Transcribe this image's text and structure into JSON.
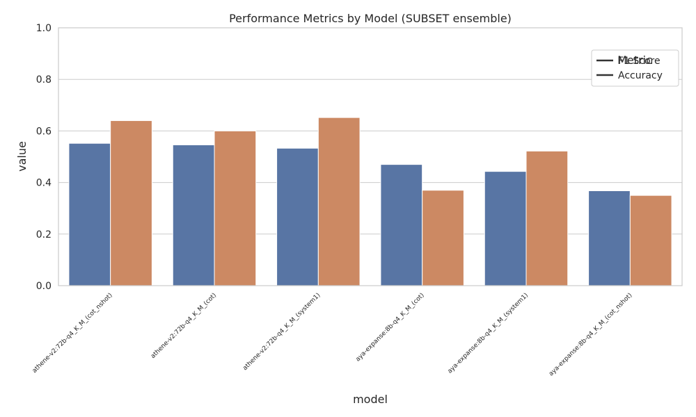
{
  "chart_data": {
    "type": "bar",
    "title": "Performance Metrics by Model (SUBSET ensemble)",
    "xlabel": "model",
    "ylabel": "value",
    "ylim": [
      0,
      1
    ],
    "yticks": [
      "0.0",
      "0.2",
      "0.4",
      "0.6",
      "0.8",
      "1.0"
    ],
    "categories": [
      "athene-v2:72b-q4_K_M_(cot_nshot)",
      "athene-v2:72b-q4_K_M_(cot)",
      "athene-v2:72b-q4_K_M_(system1)",
      "aya-expanse:8b-q4_K_M_(cot)",
      "aya-expanse:8b-q4_K_M_(system1)",
      "aya-expanse:8b-q4_K_M_(cot_nshot)"
    ],
    "series": [
      {
        "name": "F1 Score",
        "color": "#5875a4",
        "values": [
          0.552,
          0.546,
          0.533,
          0.47,
          0.443,
          0.368
        ]
      },
      {
        "name": "Accuracy",
        "color": "#cc8963",
        "values": [
          0.64,
          0.6,
          0.652,
          0.37,
          0.522,
          0.35
        ]
      }
    ],
    "legend": {
      "title": "Metric",
      "position": "top-right"
    },
    "grid": true
  }
}
